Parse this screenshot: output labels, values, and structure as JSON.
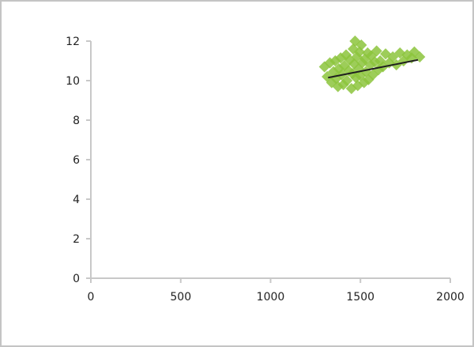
{
  "chart_data": {
    "type": "scatter",
    "title": "",
    "xlabel": "",
    "ylabel": "",
    "xlim": [
      0,
      2000
    ],
    "ylim": [
      0,
      12
    ],
    "x_ticks": [
      0,
      500,
      1000,
      1500,
      2000
    ],
    "y_ticks": [
      0,
      2,
      4,
      6,
      8,
      10,
      12
    ],
    "x_tick_labels": [
      "0",
      "500",
      "1000",
      "1500",
      "2000"
    ],
    "y_tick_labels": [
      "0",
      "2",
      "4",
      "6",
      "8",
      "10",
      "12"
    ],
    "grid": false,
    "legend": "none",
    "marker_color": "#8cc43c",
    "trendline_color": "#1f1f1f",
    "axis_color": "#c8c8c8",
    "annotation_lines": [
      "",
      "",
      ""
    ],
    "series": [
      {
        "trendline": {
          "x": [
            1320,
            1820
          ],
          "y": [
            10.15,
            11.05
          ]
        },
        "points": [
          {
            "x": 1300,
            "y": 10.7
          },
          {
            "x": 1315,
            "y": 10.2
          },
          {
            "x": 1330,
            "y": 10.9
          },
          {
            "x": 1340,
            "y": 9.9
          },
          {
            "x": 1350,
            "y": 10.45
          },
          {
            "x": 1360,
            "y": 11.0
          },
          {
            "x": 1365,
            "y": 10.1
          },
          {
            "x": 1375,
            "y": 9.7
          },
          {
            "x": 1380,
            "y": 10.6
          },
          {
            "x": 1390,
            "y": 11.15
          },
          {
            "x": 1395,
            "y": 10.3
          },
          {
            "x": 1405,
            "y": 9.8
          },
          {
            "x": 1410,
            "y": 10.75
          },
          {
            "x": 1420,
            "y": 11.3
          },
          {
            "x": 1425,
            "y": 10.0
          },
          {
            "x": 1435,
            "y": 10.5
          },
          {
            "x": 1440,
            "y": 11.05
          },
          {
            "x": 1450,
            "y": 9.6
          },
          {
            "x": 1455,
            "y": 10.35
          },
          {
            "x": 1460,
            "y": 11.6
          },
          {
            "x": 1465,
            "y": 10.85
          },
          {
            "x": 1470,
            "y": 12.0
          },
          {
            "x": 1475,
            "y": 10.15
          },
          {
            "x": 1480,
            "y": 11.2
          },
          {
            "x": 1485,
            "y": 9.75
          },
          {
            "x": 1490,
            "y": 10.6
          },
          {
            "x": 1495,
            "y": 11.45
          },
          {
            "x": 1500,
            "y": 10.25
          },
          {
            "x": 1505,
            "y": 11.8
          },
          {
            "x": 1510,
            "y": 10.9
          },
          {
            "x": 1520,
            "y": 9.9
          },
          {
            "x": 1525,
            "y": 11.1
          },
          {
            "x": 1530,
            "y": 10.45
          },
          {
            "x": 1540,
            "y": 11.4
          },
          {
            "x": 1545,
            "y": 10.05
          },
          {
            "x": 1555,
            "y": 10.8
          },
          {
            "x": 1560,
            "y": 11.25
          },
          {
            "x": 1570,
            "y": 10.3
          },
          {
            "x": 1580,
            "y": 10.95
          },
          {
            "x": 1590,
            "y": 11.5
          },
          {
            "x": 1600,
            "y": 10.55
          },
          {
            "x": 1610,
            "y": 11.0
          },
          {
            "x": 1625,
            "y": 10.7
          },
          {
            "x": 1640,
            "y": 11.35
          },
          {
            "x": 1660,
            "y": 10.9
          },
          {
            "x": 1680,
            "y": 11.2
          },
          {
            "x": 1700,
            "y": 10.8
          },
          {
            "x": 1720,
            "y": 11.4
          },
          {
            "x": 1740,
            "y": 11.0
          },
          {
            "x": 1760,
            "y": 11.3
          },
          {
            "x": 1785,
            "y": 11.15
          },
          {
            "x": 1800,
            "y": 11.45
          },
          {
            "x": 1830,
            "y": 11.2
          }
        ]
      }
    ]
  }
}
